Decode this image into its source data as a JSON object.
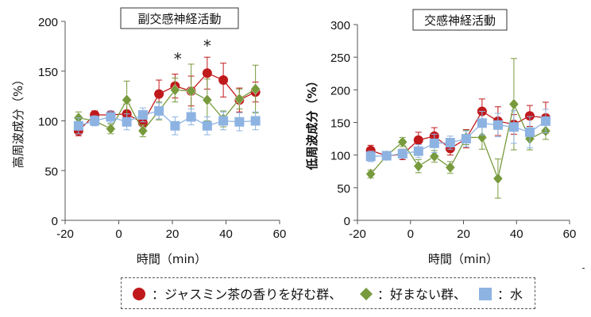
{
  "legend": {
    "items": [
      {
        "label": "：ジャスミン茶の香りを好む群、",
        "color": "#c0191c",
        "marker": "circle"
      },
      {
        "label": "：好まない群、",
        "color": "#779a3c",
        "marker": "diamond"
      },
      {
        "label": "：水",
        "color": "#8db3e2",
        "marker": "square"
      }
    ]
  },
  "chart_data": [
    {
      "type": "line",
      "title": "副交感神経活動",
      "xlabel": "時間（min）",
      "ylabel": "高周波成分（%）",
      "xlim": [
        -20,
        60
      ],
      "ylim": [
        0,
        200
      ],
      "xticks": [
        -20,
        0,
        20,
        40,
        60
      ],
      "yticks": [
        0,
        50,
        100,
        150,
        200
      ],
      "grid": false,
      "annotations": [
        {
          "text": "*",
          "x": 22,
          "y": 163
        },
        {
          "text": "*",
          "x": 33,
          "y": 176
        }
      ],
      "series": [
        {
          "color": "#c0191c",
          "marker": "circle",
          "x": [
            -15,
            -9,
            -3,
            3,
            9,
            15,
            21,
            27,
            33,
            39,
            45,
            51
          ],
          "y": [
            90,
            106,
            106,
            107,
            98,
            127,
            135,
            130,
            148,
            141,
            121,
            129
          ],
          "err": [
            5,
            4,
            4,
            10,
            8,
            14,
            12,
            15,
            16,
            17,
            12,
            10
          ]
        },
        {
          "color": "#779a3c",
          "marker": "diamond",
          "x": [
            -15,
            -9,
            -3,
            3,
            9,
            15,
            21,
            27,
            33,
            39,
            45,
            51
          ],
          "y": [
            103,
            100,
            92,
            121,
            90,
            110,
            131,
            130,
            121,
            102,
            122,
            132
          ],
          "err": [
            6,
            4,
            5,
            19,
            6,
            9,
            12,
            27,
            21,
            8,
            10,
            24
          ]
        },
        {
          "color": "#8db3e2",
          "marker": "square",
          "x": [
            -15,
            -9,
            -3,
            3,
            9,
            15,
            21,
            27,
            33,
            39,
            45,
            51
          ],
          "y": [
            95,
            100,
            104,
            99,
            106,
            110,
            95,
            104,
            95,
            100,
            99,
            100
          ],
          "err": [
            8,
            5,
            6,
            8,
            7,
            8,
            9,
            8,
            9,
            9,
            9,
            9
          ]
        }
      ]
    },
    {
      "type": "line",
      "title": "交感神経活動",
      "xlabel": "時間（min）",
      "ylabel": "低周波成分（%）",
      "xlim": [
        -20,
        60
      ],
      "ylim": [
        0,
        300
      ],
      "xticks": [
        -20,
        0,
        20,
        40,
        60
      ],
      "yticks": [
        0,
        50,
        100,
        150,
        200,
        250,
        300
      ],
      "grid": false,
      "series": [
        {
          "color": "#c0191c",
          "marker": "circle",
          "x": [
            -15,
            -9,
            -3,
            3,
            9,
            15,
            21,
            27,
            33,
            39,
            45,
            51
          ],
          "y": [
            107,
            99,
            101,
            123,
            129,
            110,
            125,
            167,
            152,
            147,
            160,
            157
          ],
          "err": [
            8,
            6,
            8,
            12,
            13,
            10,
            14,
            19,
            22,
            15,
            16,
            24
          ]
        },
        {
          "color": "#779a3c",
          "marker": "diamond",
          "x": [
            -15,
            -9,
            -3,
            3,
            9,
            15,
            21,
            27,
            33,
            39,
            45,
            51
          ],
          "y": [
            71,
            99,
            120,
            83,
            98,
            81,
            127,
            127,
            64,
            178,
            125,
            137
          ],
          "err": [
            6,
            5,
            7,
            10,
            9,
            9,
            11,
            18,
            30,
            70,
            17,
            13
          ]
        },
        {
          "color": "#8db3e2",
          "marker": "square",
          "x": [
            -15,
            -9,
            -3,
            3,
            9,
            15,
            21,
            27,
            33,
            39,
            45,
            51
          ],
          "y": [
            98,
            99,
            102,
            106,
            118,
            119,
            125,
            149,
            146,
            143,
            135,
            152
          ],
          "err": [
            8,
            6,
            7,
            10,
            14,
            10,
            12,
            18,
            18,
            25,
            24,
            18
          ]
        }
      ]
    }
  ]
}
